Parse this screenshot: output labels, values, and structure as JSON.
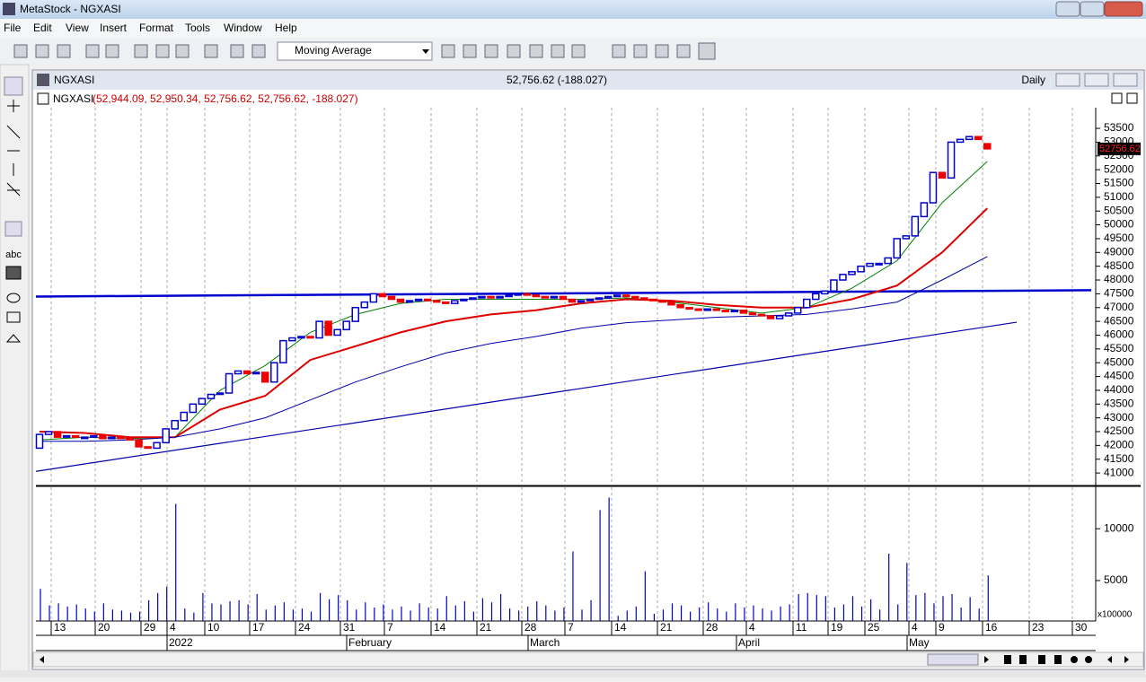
{
  "window": {
    "title": "MetaStock - NGXASI"
  },
  "menu": [
    "File",
    "Edit",
    "View",
    "Insert",
    "Format",
    "Tools",
    "Window",
    "Help"
  ],
  "toolbar": {
    "indicator": "Moving Average"
  },
  "palette": {
    "text_tool": "abc"
  },
  "chart_window": {
    "title": "NGXASI",
    "quote": "52,756.62 (-188.027)",
    "period": "Daily",
    "header_name": "NGXASI",
    "header_values": "(52,944.09, 52,950.34, 52,756.62, 52,756.62, -188.027)",
    "last_price": "52756.62"
  },
  "x_axis": {
    "days": [
      "13",
      "20",
      "29",
      "4",
      "10",
      "17",
      "24",
      "31",
      "7",
      "14",
      "21",
      "28",
      "7",
      "14",
      "21",
      "28",
      "4",
      "11",
      "19",
      "25",
      "4",
      "9",
      "16",
      "23",
      "30"
    ],
    "months": [
      "2022",
      "February",
      "March",
      "April",
      "May"
    ]
  },
  "chart_data": [
    {
      "type": "candlestick",
      "color_up": "#0000cc",
      "color_down": "#ee0000",
      "open": [
        41900,
        42400,
        42500,
        42300,
        42350,
        42300,
        42300,
        42350,
        42250,
        42300,
        42250,
        42200,
        41950,
        41900,
        42100,
        42600,
        42900,
        43200,
        43500,
        43700,
        43850,
        43900,
        44600,
        44700,
        44600,
        44650,
        44300,
        45000,
        45800,
        45900,
        45950,
        45900,
        46500,
        46000,
        46200,
        46500,
        47000,
        47200,
        47500,
        47400,
        47300,
        47200,
        47250,
        47300,
        47250,
        47200,
        47150,
        47250,
        47300,
        47350,
        47400,
        47350,
        47400,
        47450,
        47500,
        47450,
        47400,
        47350,
        47400,
        47300,
        47200,
        47250,
        47300,
        47350,
        47400,
        47450,
        47400,
        47350,
        47300,
        47250,
        47200,
        47100,
        47000,
        46950,
        46900,
        46950,
        46900,
        46850,
        46900,
        46800,
        46750,
        46700,
        46600,
        46700,
        46800,
        47000,
        47300,
        47500,
        47600,
        48000,
        48200,
        48300,
        48500,
        48600,
        48600,
        48800,
        49500,
        49600,
        50300,
        50800,
        51900,
        51700,
        53000,
        53100,
        53200,
        52944.09
      ],
      "close": [
        42400,
        42500,
        42300,
        42350,
        42300,
        42300,
        42350,
        42250,
        42300,
        42250,
        42200,
        41950,
        41900,
        42100,
        42600,
        42900,
        43200,
        43500,
        43700,
        43850,
        43900,
        44600,
        44700,
        44600,
        44650,
        44300,
        45000,
        45800,
        45900,
        45950,
        45900,
        46500,
        46000,
        46200,
        46500,
        47000,
        47200,
        47500,
        47400,
        47300,
        47200,
        47250,
        47300,
        47250,
        47200,
        47150,
        47250,
        47300,
        47350,
        47400,
        47350,
        47400,
        47450,
        47500,
        47450,
        47400,
        47350,
        47400,
        47300,
        47200,
        47250,
        47300,
        47350,
        47400,
        47450,
        47400,
        47350,
        47300,
        47250,
        47200,
        47100,
        47000,
        46950,
        46900,
        46950,
        46900,
        46850,
        46900,
        46800,
        46750,
        46700,
        46600,
        46700,
        46800,
        47000,
        47300,
        47500,
        47600,
        48000,
        48200,
        48300,
        48500,
        48600,
        48600,
        48800,
        49500,
        49600,
        50300,
        50800,
        51900,
        51700,
        53000,
        53100,
        53200,
        53100,
        52756.62
      ],
      "lines": [
        {
          "color": "#008000",
          "values": [
            42200,
            42300,
            42250,
            42300,
            44000,
            44900,
            46100,
            46750,
            47150,
            47300,
            47300,
            47300,
            47300,
            47350,
            47200,
            47000,
            46800,
            47000,
            47700,
            48700,
            50800,
            52300
          ]
        },
        {
          "color": "#dd0000",
          "values": [
            42500,
            42450,
            42300,
            42300,
            43300,
            43800,
            45100,
            45600,
            46100,
            46500,
            46750,
            46900,
            47150,
            47300,
            47250,
            47100,
            47000,
            47000,
            47300,
            47800,
            49000,
            50600
          ]
        },
        {
          "color": "#0000aa",
          "values": [
            42150,
            42150,
            42200,
            42300,
            42600,
            43000,
            43650,
            44300,
            44850,
            45350,
            45700,
            45950,
            46250,
            46450,
            46550,
            46650,
            46700,
            46750,
            46950,
            47200,
            48000,
            48850
          ]
        }
      ],
      "trendlines": [
        {
          "color": "#0000cc",
          "values": [
            47400,
            47630
          ]
        },
        {
          "color": "#0000aa",
          "values": [
            41060,
            46470
          ]
        }
      ],
      "ylim": [
        40580,
        54250
      ],
      "yticks": [
        41000,
        41500,
        42000,
        42500,
        43000,
        43500,
        44000,
        44500,
        45000,
        45500,
        46000,
        46500,
        47000,
        47500,
        48000,
        48500,
        49000,
        49500,
        50000,
        50500,
        51000,
        51500,
        52000,
        52500,
        53000,
        53500
      ]
    },
    {
      "type": "bar",
      "color": "#0000cc",
      "unit_label": "x100000",
      "values": [
        4200,
        2600,
        2800,
        2500,
        2700,
        2300,
        2000,
        2800,
        2200,
        2100,
        1900,
        2000,
        3100,
        3800,
        4400,
        12400,
        2300,
        1900,
        3800,
        2800,
        2700,
        3000,
        3100,
        2700,
        3700,
        2200,
        2600,
        2900,
        2200,
        2300,
        2000,
        3800,
        3200,
        3600,
        3100,
        2200,
        2900,
        2400,
        2700,
        2200,
        2500,
        2100,
        2800,
        2400,
        2300,
        3500,
        2600,
        3000,
        2000,
        3300,
        2900,
        3700,
        2300,
        2100,
        2500,
        3000,
        2600,
        2100,
        2400,
        7800,
        2200,
        3100,
        11800,
        13000,
        1600,
        2100,
        2500,
        5900,
        1800,
        2200,
        2800,
        2600,
        2000,
        2400,
        2900,
        2300,
        2000,
        2800,
        2400,
        2600,
        2300,
        2100,
        2500,
        2700,
        3700,
        3800,
        3600,
        3500,
        2400,
        2700,
        3500,
        2500,
        3200,
        2200,
        7600,
        2700,
        6700,
        3600,
        3800,
        2800,
        3500,
        3700,
        2400,
        3400,
        2300,
        5500
      ],
      "ylim": [
        1100,
        14000
      ],
      "yticks": [
        5000,
        10000
      ]
    }
  ]
}
